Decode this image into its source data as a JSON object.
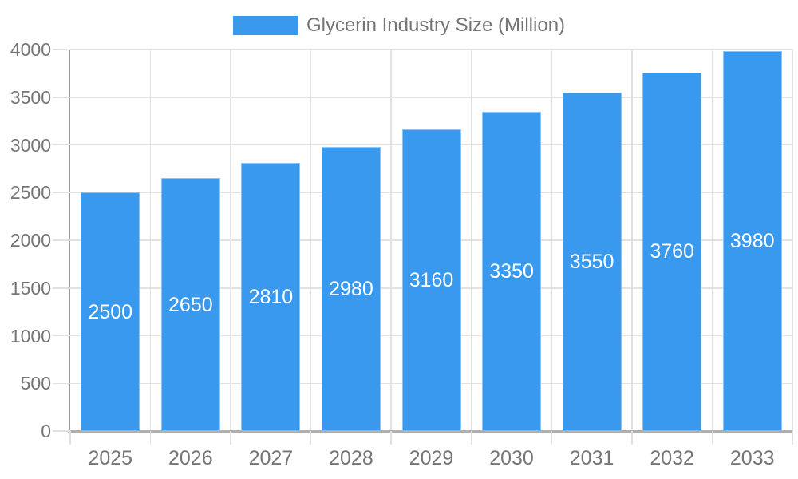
{
  "legend": {
    "label": "Glycerin Industry Size (Million)"
  },
  "chart_data": {
    "type": "bar",
    "title": "Glycerin Industry Size (Million)",
    "series_name": "Glycerin Industry Size (Million)",
    "categories": [
      "2025",
      "2026",
      "2027",
      "2028",
      "2029",
      "2030",
      "2031",
      "2032",
      "2033"
    ],
    "values": [
      2500,
      2650,
      2810,
      2980,
      3160,
      3350,
      3550,
      3760,
      3980
    ],
    "xlabel": "",
    "ylabel": "",
    "ylim": [
      0,
      4000
    ],
    "ytick_step": 500,
    "yticks": [
      0,
      500,
      1000,
      1500,
      2000,
      2500,
      3000,
      3500,
      4000
    ],
    "grid": "on",
    "legend_position": "top-center",
    "value_labels": "inside-bar-centered-white",
    "colors": {
      "bar": "#3899EE",
      "bar_border": "#8CC4F2",
      "axis_text": "#757575",
      "value_label_text": "#FFFFFF",
      "grid_line": "#E2E2E2",
      "y_axis_line": "#999999",
      "x_axis_line": "#B0B0B0",
      "background": "#FFFFFF"
    }
  }
}
